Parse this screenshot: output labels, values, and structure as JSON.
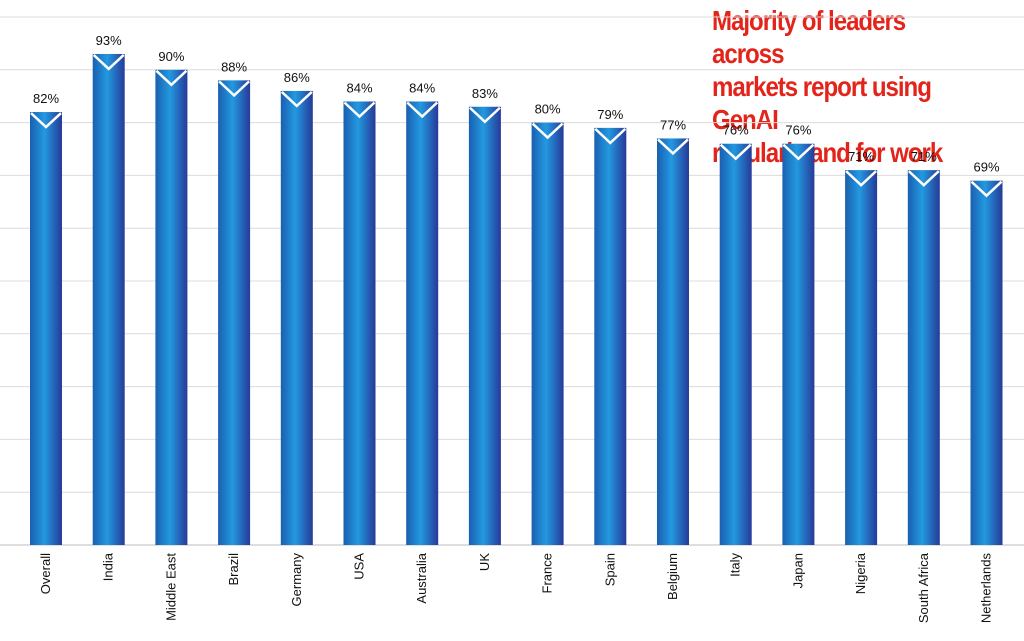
{
  "chart_data": {
    "type": "bar",
    "title": "Majority of leaders across markets report using GenAI regularly and for work",
    "categories": [
      "Overall",
      "India",
      "Middle East",
      "Brazil",
      "Germany",
      "USA",
      "Australia",
      "UK",
      "France",
      "Spain",
      "Belgium",
      "Italy",
      "Japan",
      "Nigeria",
      "South Africa",
      "Netherlands"
    ],
    "values": [
      82,
      93,
      90,
      88,
      86,
      84,
      84,
      83,
      80,
      79,
      77,
      76,
      76,
      71,
      71,
      69
    ],
    "labels": [
      "82%",
      "93%",
      "90%",
      "88%",
      "86%",
      "84%",
      "84%",
      "83%",
      "80%",
      "79%",
      "77%",
      "76%",
      "76%",
      "71%",
      "71%",
      "69%"
    ],
    "ylim": [
      0,
      100
    ],
    "grid": true,
    "xlabel": "",
    "ylabel": "",
    "colors": {
      "bar_top": "#2f3f9e",
      "bar_mid": "#1f7fd0",
      "title": "#e3241b",
      "grid": "#dcdcdc"
    }
  }
}
